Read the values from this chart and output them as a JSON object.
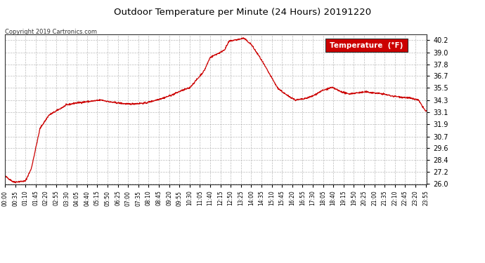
{
  "title": "Outdoor Temperature per Minute (24 Hours) 20191220",
  "copyright_text": "Copyright 2019 Cartronics.com",
  "legend_label": "Temperature  (°F)",
  "line_color": "#cc0000",
  "background_color": "#ffffff",
  "plot_bg_color": "#ffffff",
  "grid_color": "#aaaaaa",
  "legend_bg_color": "#cc0000",
  "legend_text_color": "#ffffff",
  "ylim": [
    26.0,
    40.8
  ],
  "yticks": [
    26.0,
    27.2,
    28.4,
    29.6,
    30.7,
    31.9,
    33.1,
    34.3,
    35.5,
    36.7,
    37.8,
    39.0,
    40.2
  ],
  "total_minutes": 1440,
  "xtick_step": 35,
  "control_minutes": [
    0,
    30,
    70,
    90,
    120,
    150,
    180,
    210,
    240,
    300,
    330,
    360,
    420,
    450,
    480,
    540,
    570,
    600,
    630,
    660,
    680,
    700,
    720,
    735,
    750,
    765,
    780,
    800,
    805,
    815,
    840,
    870,
    900,
    930,
    960,
    980,
    990,
    1020,
    1050,
    1080,
    1110,
    1120,
    1140,
    1170,
    1200,
    1230,
    1260,
    1290,
    1320,
    1380,
    1410,
    1435
  ],
  "control_temps": [
    26.8,
    26.2,
    26.3,
    27.5,
    31.5,
    32.8,
    33.3,
    33.8,
    34.0,
    34.2,
    34.3,
    34.1,
    33.9,
    33.95,
    34.0,
    34.5,
    34.8,
    35.2,
    35.5,
    36.5,
    37.2,
    38.5,
    38.8,
    39.0,
    39.3,
    40.1,
    40.2,
    40.3,
    40.35,
    40.4,
    39.8,
    38.5,
    37.0,
    35.5,
    34.8,
    34.5,
    34.3,
    34.4,
    34.7,
    35.2,
    35.5,
    35.5,
    35.2,
    34.9,
    35.0,
    35.1,
    35.0,
    34.9,
    34.7,
    34.5,
    34.3,
    33.2
  ]
}
